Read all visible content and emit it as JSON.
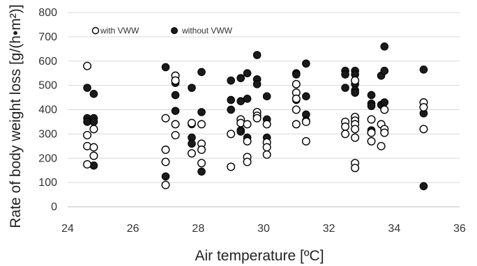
{
  "chart_data": {
    "type": "scatter",
    "title": "",
    "xlabel": "Air temperature [ºC]",
    "ylabel": "Rate of body weight loss [g/(h•m²)]",
    "xlim": [
      24,
      36
    ],
    "ylim": [
      0,
      800
    ],
    "xticks": [
      "24",
      "26",
      "28",
      "30",
      "32",
      "34",
      "36"
    ],
    "yticks": [
      "0",
      "100",
      "200",
      "300",
      "400",
      "500",
      "600",
      "700",
      "800"
    ],
    "grid": "horizontal",
    "legend": "top-left",
    "series": [
      {
        "name": "with VWW",
        "marker": "open-circle",
        "color": "#000000",
        "points": [
          [
            24.6,
            580
          ],
          [
            24.6,
            295
          ],
          [
            24.6,
            250
          ],
          [
            24.6,
            175
          ],
          [
            24.8,
            320
          ],
          [
            24.8,
            245
          ],
          [
            24.8,
            210
          ],
          [
            27.0,
            365
          ],
          [
            27.0,
            235
          ],
          [
            27.0,
            185
          ],
          [
            27.0,
            90
          ],
          [
            27.3,
            540
          ],
          [
            27.3,
            520
          ],
          [
            27.3,
            340
          ],
          [
            27.3,
            295
          ],
          [
            27.8,
            345
          ],
          [
            27.8,
            220
          ],
          [
            28.1,
            340
          ],
          [
            28.1,
            260
          ],
          [
            28.1,
            235
          ],
          [
            28.1,
            180
          ],
          [
            29.0,
            300
          ],
          [
            29.0,
            165
          ],
          [
            29.3,
            360
          ],
          [
            29.3,
            345
          ],
          [
            29.5,
            340
          ],
          [
            29.5,
            270
          ],
          [
            29.5,
            205
          ],
          [
            29.5,
            185
          ],
          [
            29.8,
            390
          ],
          [
            29.8,
            375
          ],
          [
            29.8,
            365
          ],
          [
            30.1,
            340
          ],
          [
            30.1,
            265
          ],
          [
            30.1,
            245
          ],
          [
            30.1,
            215
          ],
          [
            31.0,
            505
          ],
          [
            31.0,
            470
          ],
          [
            31.0,
            445
          ],
          [
            31.0,
            400
          ],
          [
            31.0,
            340
          ],
          [
            31.3,
            350
          ],
          [
            31.3,
            270
          ],
          [
            32.5,
            350
          ],
          [
            32.5,
            330
          ],
          [
            32.5,
            300
          ],
          [
            32.8,
            520
          ],
          [
            32.8,
            370
          ],
          [
            32.8,
            355
          ],
          [
            32.8,
            340
          ],
          [
            32.8,
            320
          ],
          [
            32.8,
            285
          ],
          [
            32.8,
            180
          ],
          [
            32.8,
            160
          ],
          [
            33.3,
            360
          ],
          [
            33.3,
            305
          ],
          [
            33.3,
            270
          ],
          [
            33.6,
            340
          ],
          [
            33.6,
            250
          ],
          [
            33.7,
            400
          ],
          [
            33.7,
            320
          ],
          [
            33.7,
            305
          ],
          [
            34.9,
            430
          ],
          [
            34.9,
            410
          ],
          [
            34.9,
            320
          ]
        ]
      },
      {
        "name": "without VWW",
        "marker": "filled-circle",
        "color": "#1a1a1a",
        "points": [
          [
            24.6,
            490
          ],
          [
            24.6,
            365
          ],
          [
            24.6,
            350
          ],
          [
            24.8,
            465
          ],
          [
            24.8,
            365
          ],
          [
            24.8,
            350
          ],
          [
            24.8,
            170
          ],
          [
            27.0,
            575
          ],
          [
            27.0,
            125
          ],
          [
            27.3,
            510
          ],
          [
            27.3,
            460
          ],
          [
            27.3,
            395
          ],
          [
            27.8,
            490
          ],
          [
            27.8,
            340
          ],
          [
            27.8,
            285
          ],
          [
            27.8,
            260
          ],
          [
            28.1,
            555
          ],
          [
            28.1,
            390
          ],
          [
            28.1,
            145
          ],
          [
            29.0,
            520
          ],
          [
            29.0,
            440
          ],
          [
            29.0,
            400
          ],
          [
            29.3,
            530
          ],
          [
            29.3,
            435
          ],
          [
            29.3,
            315
          ],
          [
            29.3,
            310
          ],
          [
            29.5,
            550
          ],
          [
            29.5,
            445
          ],
          [
            29.5,
            285
          ],
          [
            29.8,
            625
          ],
          [
            29.8,
            525
          ],
          [
            29.8,
            505
          ],
          [
            30.1,
            455
          ],
          [
            30.1,
            360
          ],
          [
            30.1,
            285
          ],
          [
            31.0,
            550
          ],
          [
            31.0,
            545
          ],
          [
            31.0,
            505
          ],
          [
            31.0,
            440
          ],
          [
            31.3,
            590
          ],
          [
            31.3,
            455
          ],
          [
            31.3,
            380
          ],
          [
            31.3,
            355
          ],
          [
            32.5,
            560
          ],
          [
            32.5,
            545
          ],
          [
            32.5,
            490
          ],
          [
            32.8,
            560
          ],
          [
            32.8,
            545
          ],
          [
            32.8,
            505
          ],
          [
            32.8,
            480
          ],
          [
            32.8,
            470
          ],
          [
            32.8,
            365
          ],
          [
            33.3,
            460
          ],
          [
            33.3,
            425
          ],
          [
            33.3,
            415
          ],
          [
            33.3,
            315
          ],
          [
            33.6,
            540
          ],
          [
            33.6,
            420
          ],
          [
            33.7,
            660
          ],
          [
            33.7,
            560
          ],
          [
            33.7,
            430
          ],
          [
            34.9,
            565
          ],
          [
            34.9,
            385
          ],
          [
            34.9,
            85
          ]
        ]
      }
    ]
  }
}
